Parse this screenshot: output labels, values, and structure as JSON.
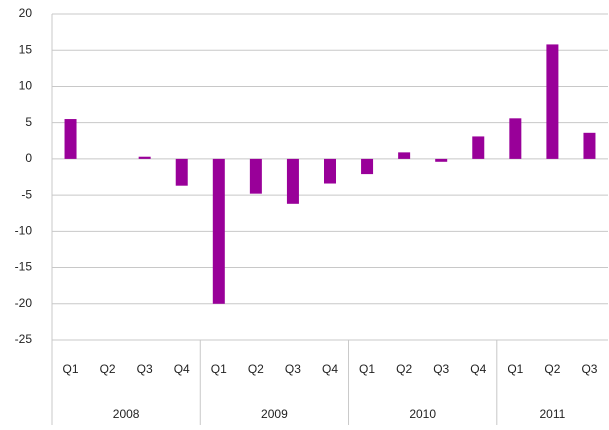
{
  "chart_data": {
    "type": "bar",
    "groups": [
      {
        "name": "2008",
        "categories": [
          "Q1",
          "Q2",
          "Q3",
          "Q4"
        ]
      },
      {
        "name": "2009",
        "categories": [
          "Q1",
          "Q2",
          "Q3",
          "Q4"
        ]
      },
      {
        "name": "2010",
        "categories": [
          "Q1",
          "Q2",
          "Q3",
          "Q4"
        ]
      },
      {
        "name": "2011",
        "categories": [
          "Q1",
          "Q2",
          "Q3"
        ]
      }
    ],
    "values": [
      5.5,
      0,
      0.3,
      -3.7,
      -20,
      -4.8,
      -6.2,
      -3.4,
      -2.1,
      0.9,
      -0.4,
      3.1,
      5.6,
      15.8,
      3.6
    ],
    "color": "#990099",
    "ylim": [
      -25,
      20
    ],
    "yticks": [
      -25,
      -20,
      -15,
      -10,
      -5,
      0,
      5,
      10,
      15,
      20
    ],
    "grid": true
  }
}
